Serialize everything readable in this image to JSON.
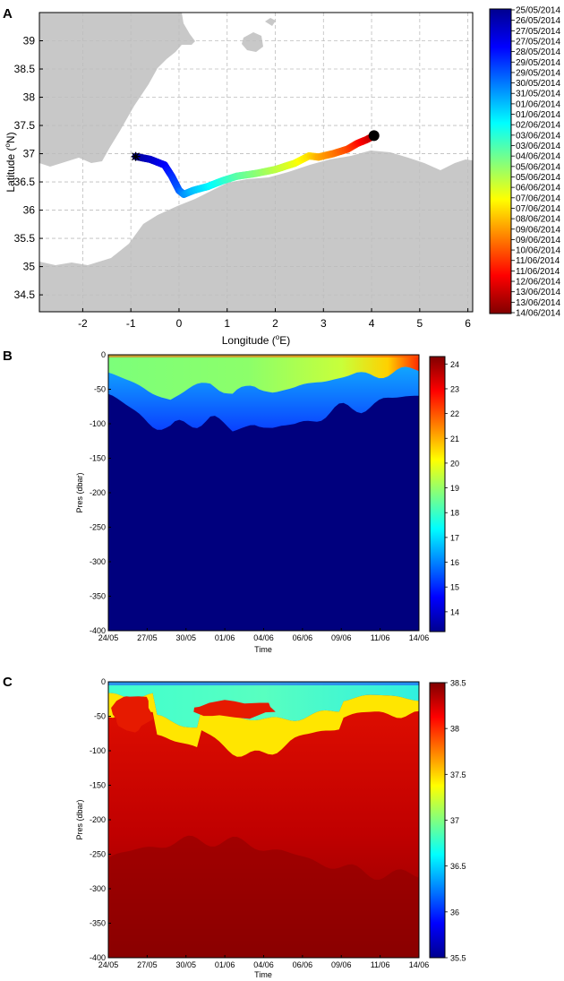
{
  "panels": {
    "a": {
      "letter": "A",
      "xlabel_main": "Longitude (",
      "xlabel_sup": "o",
      "xlabel_end": "E)",
      "ylabel_main": "Latitude (",
      "ylabel_sup": "o",
      "ylabel_end": "N)",
      "colorbar_dates": [
        "25/05/2014",
        "26/05/2014",
        "27/05/2014",
        "27/05/2014",
        "28/05/2014",
        "29/05/2014",
        "29/05/2014",
        "30/05/2014",
        "31/05/2014",
        "01/06/2014",
        "01/06/2014",
        "02/06/2014",
        "03/06/2014",
        "03/06/2014",
        "04/06/2014",
        "05/06/2014",
        "05/06/2014",
        "06/06/2014",
        "07/06/2014",
        "07/06/2014",
        "08/06/2014",
        "09/06/2014",
        "09/06/2014",
        "10/06/2014",
        "11/06/2014",
        "11/06/2014",
        "12/06/2014",
        "13/06/2014",
        "13/06/2014",
        "14/06/2014"
      ],
      "colors": {
        "land": "#c8c8c8",
        "sea": "#ffffff",
        "grid": "#bdbdbd"
      }
    },
    "b": {
      "letter": "B",
      "ylabel": "Pres (dbar)",
      "xlabel": "Time",
      "colorbar_ticks": [
        14,
        15,
        16,
        17,
        18,
        19,
        20,
        21,
        22,
        23,
        24
      ]
    },
    "c": {
      "letter": "C",
      "ylabel": "Pres (dbar)",
      "xlabel": "Time",
      "colorbar_ticks": [
        "35.5",
        "36",
        "36.5",
        "37",
        "37.5",
        "38",
        "38.5"
      ]
    }
  },
  "chart_data": [
    {
      "type": "scatter",
      "panel": "A",
      "xlabel": "Longitude (oE)",
      "ylabel": "Latitude (oN)",
      "xlim": [
        -2.9,
        6.1
      ],
      "ylim": [
        34.2,
        39.5
      ],
      "x_ticks": [
        -2,
        -1,
        0,
        1,
        2,
        3,
        4,
        5,
        6
      ],
      "y_ticks": [
        34.5,
        35,
        35.5,
        36,
        36.5,
        37,
        37.5,
        38,
        38.5,
        39
      ],
      "track": {
        "lon": [
          -0.9,
          -0.6,
          -0.3,
          -0.15,
          0.0,
          0.1,
          0.3,
          0.6,
          0.9,
          1.2,
          1.6,
          2.0,
          2.4,
          2.7,
          2.9,
          3.2,
          3.5,
          3.7,
          3.9,
          4.05
        ],
        "lat": [
          36.95,
          36.9,
          36.8,
          36.6,
          36.35,
          36.28,
          36.35,
          36.42,
          36.52,
          36.6,
          36.65,
          36.72,
          36.83,
          36.96,
          36.94,
          37.0,
          37.08,
          37.18,
          37.25,
          37.32
        ],
        "start_marker": "star",
        "end_marker": "filled-circle"
      },
      "colorbar": "date"
    },
    {
      "type": "heatmap",
      "panel": "B",
      "ylabel": "Pres (dbar)",
      "xlabel": "Time",
      "x_ticks": [
        "24/05",
        "27/05",
        "30/05",
        "01/06",
        "04/06",
        "06/06",
        "09/06",
        "11/06",
        "14/06"
      ],
      "y_ticks": [
        0,
        -50,
        -100,
        -150,
        -200,
        -250,
        -300,
        -350,
        -400
      ],
      "ylim": [
        -400,
        0
      ],
      "colorbar_range": [
        13.2,
        24.3
      ],
      "colorbar_ticks": [
        14,
        15,
        16,
        17,
        18,
        19,
        20,
        21,
        22,
        23,
        24
      ],
      "mixed_layer_depth": [
        -30,
        -45,
        -60,
        -70,
        -55,
        -45,
        -65,
        -50,
        -60,
        -55,
        -45,
        -40,
        -35,
        -35,
        -30,
        -28
      ],
      "surface_value": 19.0,
      "deep_value": 13.5
    },
    {
      "type": "heatmap",
      "panel": "C",
      "ylabel": "Pres (dbar)",
      "xlabel": "Time",
      "x_ticks": [
        "24/05",
        "27/05",
        "30/05",
        "01/06",
        "04/06",
        "06/06",
        "09/06",
        "11/06",
        "14/06"
      ],
      "y_ticks": [
        0,
        -50,
        -100,
        -150,
        -200,
        -250,
        -300,
        -350,
        -400
      ],
      "ylim": [
        -400,
        0
      ],
      "colorbar_range": [
        35.5,
        38.5
      ],
      "colorbar_ticks": [
        35.5,
        36,
        36.5,
        37,
        37.5,
        38,
        38.5
      ],
      "surface_value": 36.6,
      "deep_value": 38.5
    }
  ]
}
